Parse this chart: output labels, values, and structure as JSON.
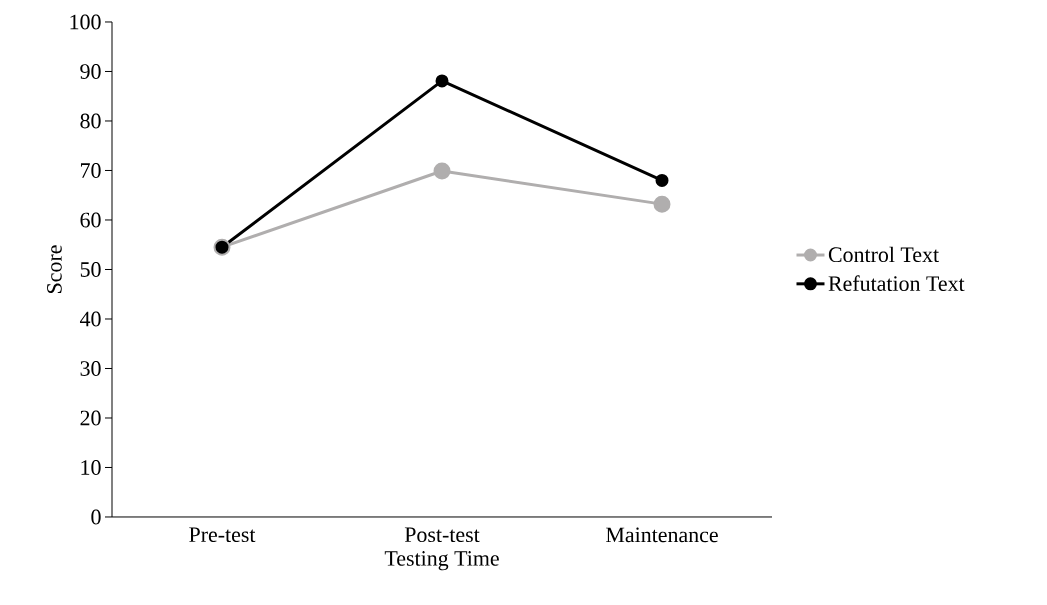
{
  "chart_data": {
    "type": "line",
    "xlabel": "Testing Time",
    "ylabel": "Score",
    "categories": [
      "Pre-test",
      "Post-test",
      "Maintenance"
    ],
    "series": [
      {
        "name": "Control Text",
        "color": "#b0aeae",
        "values": [
          54.5,
          69.9,
          63.2
        ]
      },
      {
        "name": "Refutation Text",
        "color": "#000000",
        "values": [
          54.5,
          88.1,
          68.0
        ]
      }
    ],
    "ylim": [
      0,
      100
    ],
    "yticks": [
      0,
      10,
      20,
      30,
      40,
      50,
      60,
      70,
      80,
      90,
      100
    ],
    "grid": false,
    "legend": "right",
    "marker": "circle",
    "line_style": "solid"
  }
}
